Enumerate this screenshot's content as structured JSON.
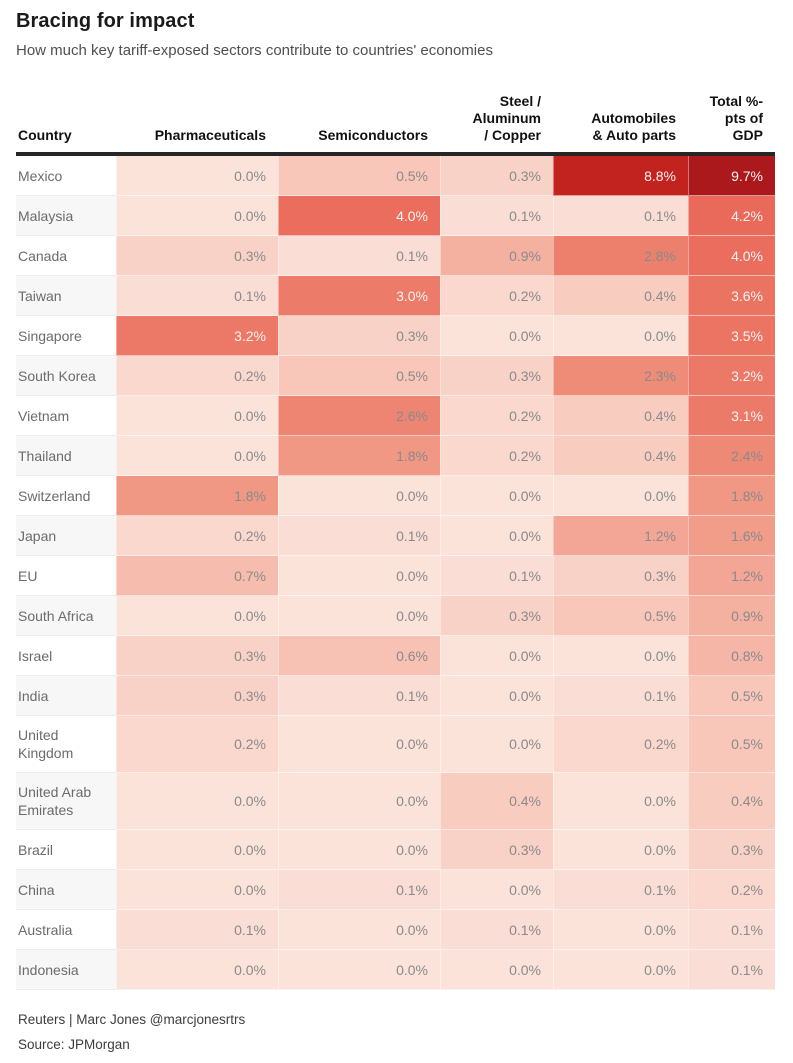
{
  "title": "Bracing for impact",
  "subtitle": "How much key tariff-exposed sectors contribute to countries' economies",
  "footer": {
    "credit": "Reuters | Marc Jones @marcjonesrtrs",
    "source": "Source: JPMorgan"
  },
  "chart_data": {
    "type": "heatmap",
    "value_unit": "% of GDP",
    "columns": [
      {
        "label": "Country",
        "align": "left"
      },
      {
        "label": "Pharmaceuticals",
        "align": "right"
      },
      {
        "label": "Semiconductors",
        "align": "right"
      },
      {
        "label": "Steel /\nAluminum\n/ Copper",
        "align": "right"
      },
      {
        "label": "Automobiles\n& Auto parts",
        "align": "right"
      },
      {
        "label": "Total %-\npts of\nGDP",
        "align": "right"
      }
    ],
    "rows": [
      {
        "country": "Mexico",
        "values": [
          0.0,
          0.5,
          0.3,
          8.8,
          9.7
        ]
      },
      {
        "country": "Malaysia",
        "values": [
          0.0,
          4.0,
          0.1,
          0.1,
          4.2
        ]
      },
      {
        "country": "Canada",
        "values": [
          0.3,
          0.1,
          0.9,
          2.8,
          4.0
        ]
      },
      {
        "country": "Taiwan",
        "values": [
          0.1,
          3.0,
          0.2,
          0.4,
          3.6
        ]
      },
      {
        "country": "Singapore",
        "values": [
          3.2,
          0.3,
          0.0,
          0.0,
          3.5
        ]
      },
      {
        "country": "South Korea",
        "values": [
          0.2,
          0.5,
          0.3,
          2.3,
          3.2
        ]
      },
      {
        "country": "Vietnam",
        "values": [
          0.0,
          2.6,
          0.2,
          0.4,
          3.1
        ]
      },
      {
        "country": "Thailand",
        "values": [
          0.0,
          1.8,
          0.2,
          0.4,
          2.4
        ]
      },
      {
        "country": "Switzerland",
        "values": [
          1.8,
          0.0,
          0.0,
          0.0,
          1.8
        ]
      },
      {
        "country": "Japan",
        "values": [
          0.2,
          0.1,
          0.0,
          1.2,
          1.6
        ]
      },
      {
        "country": "EU",
        "values": [
          0.7,
          0.0,
          0.1,
          0.3,
          1.2
        ]
      },
      {
        "country": "South Africa",
        "values": [
          0.0,
          0.0,
          0.3,
          0.5,
          0.9
        ]
      },
      {
        "country": "Israel",
        "values": [
          0.3,
          0.6,
          0.0,
          0.0,
          0.8
        ]
      },
      {
        "country": "India",
        "values": [
          0.3,
          0.1,
          0.0,
          0.1,
          0.5
        ]
      },
      {
        "country": "United Kingdom",
        "values": [
          0.2,
          0.0,
          0.0,
          0.2,
          0.5
        ]
      },
      {
        "country": "United Arab Emirates",
        "values": [
          0.0,
          0.0,
          0.4,
          0.0,
          0.4
        ]
      },
      {
        "country": "Brazil",
        "values": [
          0.0,
          0.0,
          0.3,
          0.0,
          0.3
        ]
      },
      {
        "country": "China",
        "values": [
          0.0,
          0.1,
          0.0,
          0.1,
          0.2
        ]
      },
      {
        "country": "Australia",
        "values": [
          0.1,
          0.0,
          0.1,
          0.0,
          0.1
        ]
      },
      {
        "country": "Indonesia",
        "values": [
          0.0,
          0.0,
          0.0,
          0.0,
          0.1
        ]
      }
    ],
    "value_format": "one_decimal_percent",
    "color_scale": {
      "stops": [
        [
          0.0,
          "#fbe3da"
        ],
        [
          1.0,
          "#f4ab9a"
        ],
        [
          2.0,
          "#f0937f"
        ],
        [
          3.0,
          "#ec7b69"
        ],
        [
          4.2,
          "#e96a5a"
        ],
        [
          8.8,
          "#c2231f"
        ],
        [
          9.7,
          "#ac191d"
        ]
      ],
      "text_color_low": "#8a8a8a",
      "text_color_high": "#fdf3f0",
      "white_text_threshold": 3.0
    }
  }
}
